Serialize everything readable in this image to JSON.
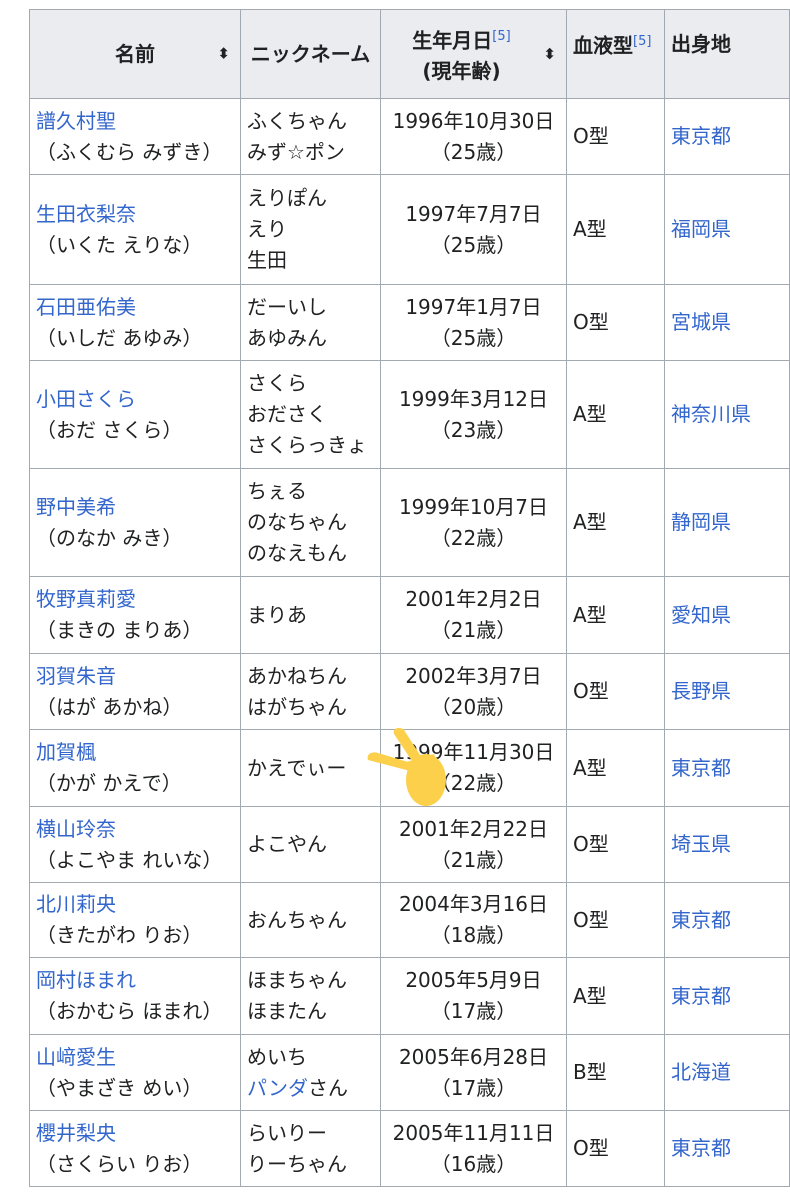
{
  "headers": {
    "name": "名前",
    "nickname": "ニックネーム",
    "birth": "生年月日",
    "birth_sub": "(現年齢)",
    "blood": "血液型",
    "birthplace": "出身地",
    "ref": "[5]"
  },
  "rows": [
    {
      "name": "譜久村聖",
      "reading": "（ふくむら みずき）",
      "nick": [
        "ふくちゃん",
        "みず☆ポン"
      ],
      "date": "1996年10月30日",
      "age": "（25歳）",
      "blood": "O型",
      "place": "東京都"
    },
    {
      "name": "生田衣梨奈",
      "reading": "（いくた えりな）",
      "nick": [
        "えりぽん",
        "えり",
        "生田"
      ],
      "date": "1997年7月7日",
      "age": "（25歳）",
      "blood": "A型",
      "place": "福岡県"
    },
    {
      "name": "石田亜佑美",
      "reading": "（いしだ あゆみ）",
      "nick": [
        "だーいし",
        "あゆみん"
      ],
      "date": "1997年1月7日",
      "age": "（25歳）",
      "blood": "O型",
      "place": "宮城県"
    },
    {
      "name": "小田さくら",
      "reading": "（おだ さくら）",
      "nick": [
        "さくら",
        "おださく",
        "さくらっきょ"
      ],
      "date": "1999年3月12日",
      "age": "（23歳）",
      "blood": "A型",
      "place": "神奈川県"
    },
    {
      "name": "野中美希",
      "reading": "（のなか みき）",
      "nick": [
        "ちぇる",
        "のなちゃん",
        "のなえもん"
      ],
      "date": "1999年10月7日",
      "age": "（22歳）",
      "blood": "A型",
      "place": "静岡県"
    },
    {
      "name": "牧野真莉愛",
      "reading": "（まきの まりあ）",
      "nick": [
        "まりあ"
      ],
      "date": "2001年2月2日",
      "age": "（21歳）",
      "blood": "A型",
      "place": "愛知県"
    },
    {
      "name": "羽賀朱音",
      "reading": "（はが あかね）",
      "nick": [
        "あかねちん",
        "はがちゃん"
      ],
      "date": "2002年3月7日",
      "age": "（20歳）",
      "blood": "O型",
      "place": "長野県"
    },
    {
      "name": "加賀楓",
      "reading": "（かが かえで）",
      "nick": [
        "かえでぃー"
      ],
      "date": "1999年11月30日",
      "age": "（22歳）",
      "blood": "A型",
      "place": "東京都"
    },
    {
      "name": "横山玲奈",
      "reading": "（よこやま れいな）",
      "nick": [
        "よこやん"
      ],
      "date": "2001年2月22日",
      "age": "（21歳）",
      "blood": "O型",
      "place": "埼玉県"
    },
    {
      "name": "北川莉央",
      "reading": "（きたがわ りお）",
      "nick": [
        "おんちゃん"
      ],
      "date": "2004年3月16日",
      "age": "（18歳）",
      "blood": "O型",
      "place": "東京都"
    },
    {
      "name": "岡村ほまれ",
      "reading": "（おかむら ほまれ）",
      "nick": [
        "ほまちゃん",
        "ほまたん"
      ],
      "date": "2005年5月9日",
      "age": "（17歳）",
      "blood": "A型",
      "place": "東京都"
    },
    {
      "name": "山﨑愛生",
      "reading": "（やまざき めい）",
      "nick": [
        "めいち",
        "パンダさん"
      ],
      "nick_link": "パンダ",
      "date": "2005年6月28日",
      "age": "（17歳）",
      "blood": "B型",
      "place": "北海道"
    },
    {
      "name": "櫻井梨央",
      "reading": "（さくらい りお）",
      "nick": [
        "らいりー",
        "りーちゃん"
      ],
      "date": "2005年11月11日",
      "age": "（16歳）",
      "blood": "O型",
      "place": "東京都"
    }
  ],
  "overlay": {
    "icon": "pointing-hand-icon",
    "color": "#fcd04b"
  }
}
